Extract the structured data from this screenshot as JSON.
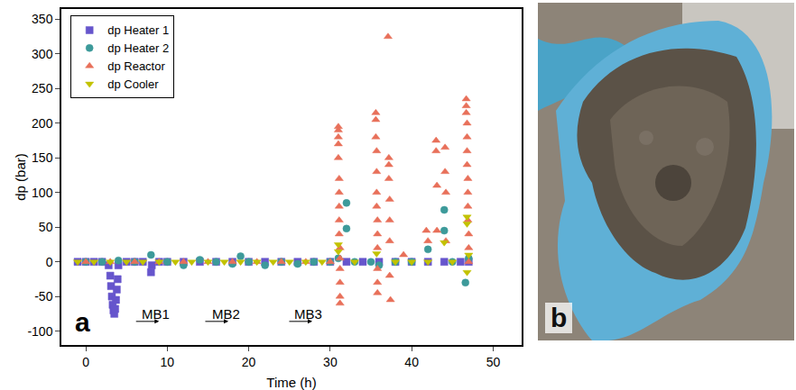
{
  "chart_data": {
    "type": "scatter",
    "panel_label": "a",
    "x_label": "Time (h)",
    "y_label": "dp (bar)",
    "xlim": [
      -3,
      53.5
    ],
    "ylim": [
      -120,
      365
    ],
    "xticks": [
      0,
      10,
      20,
      30,
      40,
      50
    ],
    "yticks": [
      -100,
      -50,
      0,
      50,
      100,
      150,
      200,
      250,
      300,
      350
    ],
    "grid": false,
    "legend": "upper left",
    "series": [
      {
        "name": "dp Heater 1",
        "color": "#6655cc",
        "marker": "square",
        "x": [
          -1,
          0,
          1,
          2,
          2.8,
          3,
          3.1,
          3.2,
          3.3,
          3.4,
          3.5,
          3.6,
          3.7,
          3.8,
          3.9,
          4,
          5,
          6,
          7,
          8,
          8.1,
          9,
          10,
          12,
          14,
          16,
          18,
          20,
          22,
          24,
          26,
          28,
          30,
          32,
          34,
          36,
          38,
          40,
          42,
          44,
          46,
          47
        ],
        "values": [
          0,
          0,
          0,
          0,
          -5,
          -20,
          -35,
          -50,
          -62,
          -70,
          -75,
          -68,
          -55,
          -40,
          -25,
          -5,
          0,
          0,
          0,
          -15,
          -5,
          0,
          0,
          0,
          0,
          0,
          0,
          0,
          0,
          0,
          0,
          0,
          0,
          0,
          0,
          0,
          0,
          0,
          0,
          0,
          0,
          0
        ]
      },
      {
        "name": "dp Heater 2",
        "color": "#3d9a9a",
        "marker": "circle",
        "x": [
          0,
          2,
          4,
          6,
          8,
          10,
          12,
          14,
          16,
          18,
          19,
          20,
          22,
          24,
          26,
          28,
          30,
          31,
          32,
          32,
          33,
          35,
          36,
          38,
          40,
          42,
          44,
          44,
          45,
          46.6,
          47
        ],
        "values": [
          0,
          0,
          2,
          0,
          10,
          0,
          -5,
          3,
          0,
          -3,
          8,
          0,
          -5,
          0,
          -3,
          0,
          0,
          5,
          85,
          48,
          0,
          0,
          -5,
          0,
          0,
          18,
          75,
          45,
          0,
          -30,
          5
        ]
      },
      {
        "name": "dp Reactor",
        "color": "#e8705a",
        "marker": "triangle-up",
        "x": [
          0,
          3,
          6,
          9,
          12,
          15,
          18,
          21,
          24,
          27,
          30,
          31,
          31,
          31,
          31,
          31,
          31.1,
          31.1,
          31.1,
          31.1,
          31.1,
          31.2,
          31.2,
          31.2,
          31.2,
          31.2,
          31.2,
          35.6,
          35.6,
          35.6,
          35.7,
          35.7,
          35.7,
          35.7,
          35.8,
          35.8,
          35.8,
          35.8,
          35.8,
          35.8,
          37.1,
          37.2,
          37.2,
          37.2,
          37.3,
          37.3,
          37.3,
          37.3,
          37.4,
          39,
          41.8,
          42,
          43,
          43,
          43.1,
          43.1,
          44.1,
          44.1,
          44.2,
          44.2,
          46.7,
          46.7,
          46.7,
          46.8,
          46.8,
          46.8,
          46.8,
          46.9,
          46.9,
          46.9,
          46.9,
          47,
          47,
          47
        ],
        "values": [
          0,
          0,
          0,
          0,
          0,
          0,
          0,
          0,
          0,
          0,
          0,
          195,
          190,
          180,
          170,
          150,
          120,
          100,
          80,
          60,
          40,
          20,
          5,
          -10,
          -30,
          -50,
          -60,
          215,
          205,
          180,
          160,
          130,
          100,
          80,
          60,
          40,
          20,
          -10,
          -30,
          -45,
          325,
          150,
          140,
          120,
          90,
          60,
          30,
          -20,
          -55,
          10,
          45,
          30,
          175,
          160,
          110,
          45,
          165,
          130,
          100,
          30,
          235,
          225,
          215,
          200,
          180,
          160,
          140,
          120,
          100,
          80,
          60,
          40,
          20,
          0
        ]
      },
      {
        "name": "dp Cooler",
        "color": "#c2c200",
        "marker": "triangle-down",
        "x": [
          -1,
          1,
          3,
          5,
          7,
          9,
          11,
          13,
          15,
          17,
          19,
          21,
          23,
          25,
          27,
          29,
          31,
          31,
          33,
          35.7,
          38,
          40,
          42,
          44,
          45,
          46.8,
          46.8,
          46.8,
          47
        ],
        "values": [
          0,
          0,
          0,
          0,
          0,
          0,
          0,
          0,
          0,
          0,
          0,
          0,
          0,
          0,
          0,
          0,
          25,
          15,
          0,
          12,
          0,
          0,
          0,
          28,
          0,
          65,
          55,
          -15,
          10
        ]
      }
    ],
    "annotations": [
      {
        "text": "MB1",
        "x": 8.6,
        "y": -75,
        "arrow_from": 6,
        "arrow_to": 9,
        "arrow_y": -86
      },
      {
        "text": "MB2",
        "x": 17.2,
        "y": -75,
        "arrow_from": 14.5,
        "arrow_to": 17.5,
        "arrow_y": -86
      },
      {
        "text": "MB3",
        "x": 27.3,
        "y": -75,
        "arrow_from": 24.8,
        "arrow_to": 27.8,
        "arrow_y": -86
      }
    ]
  },
  "photo": {
    "panel_label": "b"
  }
}
